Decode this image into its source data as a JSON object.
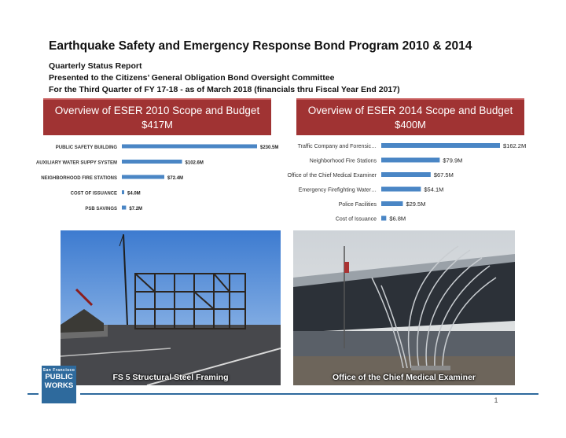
{
  "header": {
    "title": "Earthquake Safety and Emergency Response Bond Program 2010 & 2014",
    "line1": "Quarterly Status Report",
    "line2": "Presented to the Citizens’ General Obligation Bond Oversight Committee",
    "line3": "For the Third Quarter of FY 17-18 - as of March 2018 (financials thru Fiscal Year End 2017)"
  },
  "left_panel": {
    "title": "Overview of ESER 2010 Scope and Budget",
    "amount": "$417M"
  },
  "right_panel": {
    "title": "Overview of ESER 2014 Scope and Budget",
    "amount": "$400M"
  },
  "chart_data": [
    {
      "type": "bar",
      "orientation": "horizontal",
      "title": "",
      "categories": [
        "PUBLIC SAFETY BUILDING",
        "AUXILIARY WATER SUPPY SYSTEM",
        "NEIGHBORHOOD FIRE STATIONS",
        "COST OF ISSUANCE",
        "PSB SAVINGS"
      ],
      "values": [
        230.5,
        102.6,
        72.4,
        4.0,
        7.2
      ],
      "value_labels": [
        "$230.5M",
        "$102.6M",
        "$72.4M",
        "$4.0M",
        "$7.2M"
      ],
      "xlim": [
        0,
        230.5
      ],
      "bar_color": "#4a86c5",
      "grid": false
    },
    {
      "type": "bar",
      "orientation": "horizontal",
      "title": "",
      "categories": [
        "Traffic Company and Forensic…",
        "Neighborhood Fire Stations",
        "Office of the Chief Medical Examiner",
        "Emergency Firefighting Water…",
        "Police Facilities",
        "Cost of Issuance"
      ],
      "values": [
        162.2,
        79.9,
        67.5,
        54.1,
        29.5,
        6.8
      ],
      "value_labels": [
        "$162.2M",
        "$79.9M",
        "$67.5M",
        "$54.1M",
        "$29.5M",
        "$6.8M"
      ],
      "xlim": [
        0,
        162.2
      ],
      "bar_color": "#4a86c5",
      "grid": false
    }
  ],
  "photos": [
    {
      "caption": "FS 5 Structural Steel Framing"
    },
    {
      "caption": "Office of the Chief Medical Examiner"
    }
  ],
  "logo": {
    "line1": "San Francisco",
    "line2": "PUBLIC",
    "line3": "WORKS"
  },
  "footer": {
    "page_number": "1"
  },
  "colors": {
    "banner": "#a03333",
    "bar": "#4a86c5",
    "brand": "#2e6a9d"
  }
}
